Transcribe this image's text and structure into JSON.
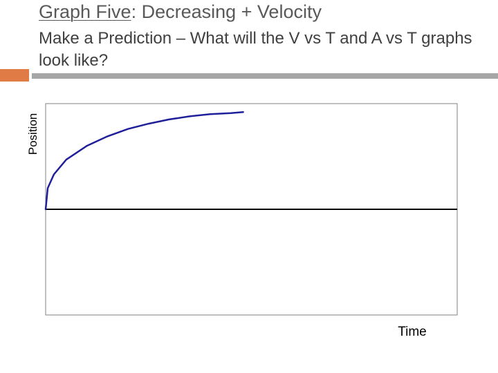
{
  "slide": {
    "title_underlined": "Graph Five",
    "title_rest": ": Decreasing + Velocity",
    "subtitle": "Make a Prediction – What will the V vs T and A vs T graphs look like?"
  },
  "colors": {
    "accent": "#e07b45",
    "rule": "#a6a6a6",
    "curve": "#1f1f9a",
    "axis": "#000000"
  },
  "chart_data": {
    "type": "line",
    "title": "",
    "xlabel": "Time",
    "ylabel": "Position",
    "xlim": [
      0,
      1
    ],
    "ylim": [
      -1,
      1
    ],
    "grid": false,
    "series": [
      {
        "x": [
          0,
          0.005,
          0.02,
          0.05,
          0.1,
          0.15,
          0.2,
          0.25,
          0.3,
          0.35,
          0.4,
          0.45,
          0.48
        ],
        "values": [
          0,
          0.2,
          0.33,
          0.47,
          0.6,
          0.69,
          0.76,
          0.81,
          0.85,
          0.88,
          0.9,
          0.91,
          0.92
        ]
      }
    ]
  }
}
